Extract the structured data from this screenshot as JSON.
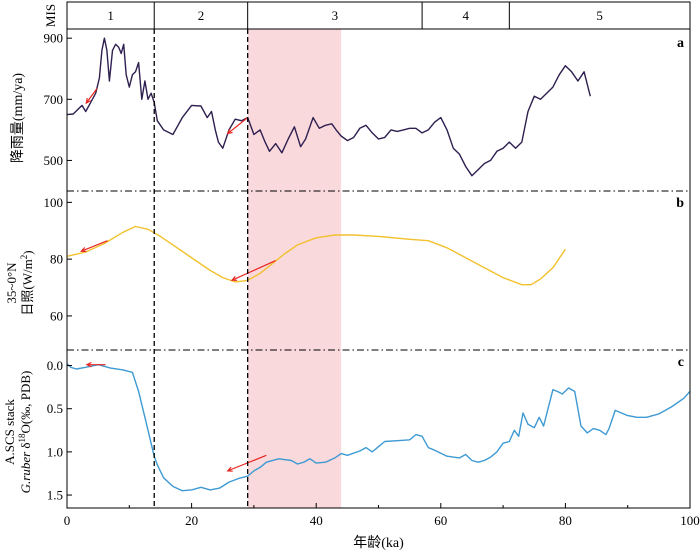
{
  "chart_data": {
    "type": "line",
    "xlabel": "年龄(ka)",
    "xlim": [
      0,
      100
    ],
    "x_ticks": [
      0,
      20,
      40,
      60,
      80,
      100
    ],
    "mis": {
      "label": "MIS",
      "stages": [
        {
          "name": "1",
          "start": 0,
          "end": 14
        },
        {
          "name": "2",
          "start": 14,
          "end": 29
        },
        {
          "name": "3",
          "start": 29,
          "end": 57
        },
        {
          "name": "4",
          "start": 57,
          "end": 71
        },
        {
          "name": "5",
          "start": 71,
          "end": 100
        }
      ]
    },
    "highlight_band": {
      "start": 29,
      "end": 44,
      "color": "#f9d9dc"
    },
    "boundary_lines": [
      14,
      29
    ],
    "panels": [
      {
        "id": "a",
        "letter": "a",
        "ylabel": "降雨量(mm/ya)",
        "ylim": [
          400,
          930
        ],
        "y_ticks": [
          500,
          700,
          900
        ],
        "reversed": false,
        "color": "#2e1f4f",
        "series": [
          [
            0,
            650
          ],
          [
            1,
            652
          ],
          [
            1.8,
            668
          ],
          [
            2.4,
            680
          ],
          [
            3,
            660
          ],
          [
            3.8,
            690
          ],
          [
            4.6,
            720
          ],
          [
            5.2,
            770
          ],
          [
            5.6,
            860
          ],
          [
            6,
            900
          ],
          [
            6.4,
            860
          ],
          [
            6.8,
            760
          ],
          [
            7.3,
            860
          ],
          [
            7.8,
            880
          ],
          [
            8.3,
            870
          ],
          [
            8.7,
            850
          ],
          [
            9.1,
            880
          ],
          [
            9.5,
            780
          ],
          [
            10,
            740
          ],
          [
            10.5,
            780
          ],
          [
            11,
            790
          ],
          [
            11.5,
            820
          ],
          [
            12,
            700
          ],
          [
            12.5,
            760
          ],
          [
            13,
            700
          ],
          [
            13.5,
            720
          ],
          [
            14,
            690
          ],
          [
            14.5,
            630
          ],
          [
            15.5,
            600
          ],
          [
            17,
            585
          ],
          [
            18.5,
            640
          ],
          [
            20,
            680
          ],
          [
            21.5,
            678
          ],
          [
            22.5,
            640
          ],
          [
            23.2,
            660
          ],
          [
            23.8,
            600
          ],
          [
            24.3,
            560
          ],
          [
            25,
            540
          ],
          [
            26,
            600
          ],
          [
            27,
            635
          ],
          [
            28,
            630
          ],
          [
            29,
            640
          ],
          [
            30,
            585
          ],
          [
            31,
            600
          ],
          [
            31.8,
            560
          ],
          [
            32.5,
            530
          ],
          [
            33.5,
            555
          ],
          [
            34.5,
            525
          ],
          [
            35.5,
            570
          ],
          [
            36.5,
            610
          ],
          [
            37.5,
            545
          ],
          [
            38.3,
            570
          ],
          [
            39.5,
            640
          ],
          [
            40.5,
            605
          ],
          [
            41.5,
            615
          ],
          [
            42.5,
            620
          ],
          [
            43.2,
            600
          ],
          [
            44,
            580
          ],
          [
            45,
            565
          ],
          [
            46,
            575
          ],
          [
            47,
            605
          ],
          [
            48,
            615
          ],
          [
            49,
            590
          ],
          [
            50,
            570
          ],
          [
            51,
            575
          ],
          [
            52,
            600
          ],
          [
            53,
            595
          ],
          [
            54,
            600
          ],
          [
            55,
            605
          ],
          [
            56,
            605
          ],
          [
            57,
            590
          ],
          [
            58,
            600
          ],
          [
            59,
            625
          ],
          [
            60,
            640
          ],
          [
            61,
            600
          ],
          [
            62,
            540
          ],
          [
            63,
            520
          ],
          [
            64,
            480
          ],
          [
            65,
            450
          ],
          [
            66,
            470
          ],
          [
            67,
            490
          ],
          [
            68,
            500
          ],
          [
            69,
            530
          ],
          [
            70,
            540
          ],
          [
            71,
            560
          ],
          [
            72,
            540
          ],
          [
            73,
            560
          ],
          [
            74,
            660
          ],
          [
            75,
            710
          ],
          [
            76,
            700
          ],
          [
            77,
            720
          ],
          [
            78,
            740
          ],
          [
            79,
            780
          ],
          [
            80,
            810
          ],
          [
            81,
            790
          ],
          [
            82,
            760
          ],
          [
            83,
            790
          ],
          [
            84,
            710
          ]
        ],
        "arrows": [
          {
            "x1": 4.8,
            "y1": 735,
            "x2": 3.1,
            "y2": 688
          },
          {
            "x1": 29,
            "y1": 640,
            "x2": 25.8,
            "y2": 588
          }
        ]
      },
      {
        "id": "b",
        "letter": "b",
        "ylabel_line1": "35~0°N",
        "ylabel_line2_text": "日照(W/m",
        "ylabel_line2_sup": "2",
        "ylabel_line2_end": ")",
        "ylim": [
          48,
          104
        ],
        "y_ticks": [
          60,
          80,
          100
        ],
        "reversed": false,
        "color": "#f2c12e",
        "series": [
          [
            0,
            81
          ],
          [
            3,
            82.5
          ],
          [
            6,
            85.5
          ],
          [
            9,
            89.5
          ],
          [
            11,
            91.5
          ],
          [
            13,
            90.5
          ],
          [
            15,
            88
          ],
          [
            17,
            85
          ],
          [
            19,
            82
          ],
          [
            21,
            79
          ],
          [
            23,
            76
          ],
          [
            25,
            73.5
          ],
          [
            27,
            72
          ],
          [
            29,
            72.5
          ],
          [
            31,
            75
          ],
          [
            33,
            78.5
          ],
          [
            35,
            82
          ],
          [
            37,
            85
          ],
          [
            40,
            87.5
          ],
          [
            43,
            88.5
          ],
          [
            46,
            88.5
          ],
          [
            50,
            88
          ],
          [
            55,
            87
          ],
          [
            58,
            86.5
          ],
          [
            61,
            84
          ],
          [
            64,
            80.5
          ],
          [
            67,
            77
          ],
          [
            70,
            73.5
          ],
          [
            73,
            71
          ],
          [
            74.5,
            71
          ],
          [
            76,
            73
          ],
          [
            78,
            77
          ],
          [
            80,
            83.5
          ]
        ],
        "arrows": [
          {
            "x1": 6.5,
            "y1": 86.5,
            "x2": 2.3,
            "y2": 82.8
          },
          {
            "x1": 33.5,
            "y1": 79.5,
            "x2": 26.5,
            "y2": 72.6
          }
        ]
      },
      {
        "id": "c",
        "letter": "c",
        "ylabel_line1": "A.SCS stack",
        "ylabel_line2_italic": "G.ruber",
        "ylabel_line2_rest": " δ",
        "ylabel_line2_sup": "18",
        "ylabel_line2_end": "O(‰, PDB)",
        "ylim": [
          1.65,
          -0.18
        ],
        "y_ticks": [
          0.0,
          0.5,
          1.0,
          1.5
        ],
        "y_tick_labels": [
          "0.0",
          "0.5",
          "1.0",
          "1.5"
        ],
        "reversed": true,
        "color": "#3e9ad3",
        "series": [
          [
            0,
            -0.02
          ],
          [
            0.6,
            0.02
          ],
          [
            1.5,
            0.04
          ],
          [
            3,
            0.02
          ],
          [
            5,
            -0.01
          ],
          [
            7,
            0.03
          ],
          [
            9,
            0.05
          ],
          [
            10.5,
            0.08
          ],
          [
            11.5,
            0.3
          ],
          [
            12.5,
            0.6
          ],
          [
            13.5,
            0.9
          ],
          [
            14,
            1.05
          ],
          [
            14.5,
            1.15
          ],
          [
            15.5,
            1.3
          ],
          [
            17,
            1.4
          ],
          [
            18.5,
            1.45
          ],
          [
            20,
            1.44
          ],
          [
            21.5,
            1.41
          ],
          [
            23,
            1.44
          ],
          [
            24.5,
            1.42
          ],
          [
            26,
            1.35
          ],
          [
            27.5,
            1.31
          ],
          [
            29,
            1.28
          ],
          [
            30,
            1.22
          ],
          [
            31,
            1.18
          ],
          [
            32,
            1.12
          ],
          [
            34,
            1.08
          ],
          [
            36,
            1.1
          ],
          [
            37,
            1.14
          ],
          [
            38,
            1.12
          ],
          [
            39,
            1.08
          ],
          [
            40,
            1.13
          ],
          [
            41.5,
            1.12
          ],
          [
            43,
            1.07
          ],
          [
            44,
            1.02
          ],
          [
            45,
            1.04
          ],
          [
            47,
            0.99
          ],
          [
            48,
            0.95
          ],
          [
            49,
            1.0
          ],
          [
            50,
            0.94
          ],
          [
            51,
            0.88
          ],
          [
            53,
            0.87
          ],
          [
            55,
            0.86
          ],
          [
            56,
            0.8
          ],
          [
            57,
            0.82
          ],
          [
            58,
            0.95
          ],
          [
            59,
            0.98
          ],
          [
            61,
            1.05
          ],
          [
            63,
            1.07
          ],
          [
            64,
            1.03
          ],
          [
            65,
            1.1
          ],
          [
            66,
            1.12
          ],
          [
            67,
            1.1
          ],
          [
            68,
            1.06
          ],
          [
            69,
            1.0
          ],
          [
            70,
            0.9
          ],
          [
            71,
            0.88
          ],
          [
            71.8,
            0.75
          ],
          [
            72.5,
            0.82
          ],
          [
            73.2,
            0.55
          ],
          [
            74,
            0.68
          ],
          [
            75,
            0.72
          ],
          [
            75.8,
            0.6
          ],
          [
            76.5,
            0.7
          ],
          [
            77.5,
            0.42
          ],
          [
            78,
            0.28
          ],
          [
            78.7,
            0.3
          ],
          [
            79.5,
            0.33
          ],
          [
            80.5,
            0.26
          ],
          [
            81.5,
            0.3
          ],
          [
            82.5,
            0.7
          ],
          [
            83.5,
            0.78
          ],
          [
            84.5,
            0.73
          ],
          [
            85.5,
            0.75
          ],
          [
            86.5,
            0.8
          ],
          [
            87,
            0.73
          ],
          [
            88,
            0.52
          ],
          [
            89,
            0.55
          ],
          [
            90,
            0.58
          ],
          [
            91.5,
            0.6
          ],
          [
            93,
            0.6
          ],
          [
            95,
            0.56
          ],
          [
            97,
            0.48
          ],
          [
            99,
            0.38
          ],
          [
            100,
            0.3
          ]
        ],
        "arrows": [
          {
            "x1": 6.2,
            "y1": -0.01,
            "x2": 3.2,
            "y2": -0.01
          },
          {
            "x1": 32,
            "y1": 1.04,
            "x2": 25.8,
            "y2": 1.22
          }
        ]
      }
    ]
  }
}
